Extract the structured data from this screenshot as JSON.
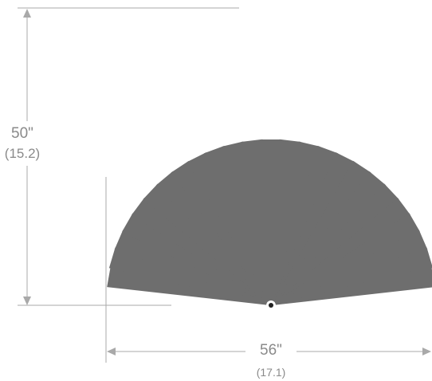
{
  "colors": {
    "ray": "#6e6e6e",
    "dimension": "#a9a9a9",
    "dimension_text": "#8a8a8a",
    "origin": "#222222"
  },
  "figure": {
    "ray_count": 25
  },
  "dimensions": {
    "height": {
      "primary": "50\"",
      "secondary": "(15.2)"
    },
    "width": {
      "primary": "56\"",
      "secondary": "(17.1)"
    }
  }
}
